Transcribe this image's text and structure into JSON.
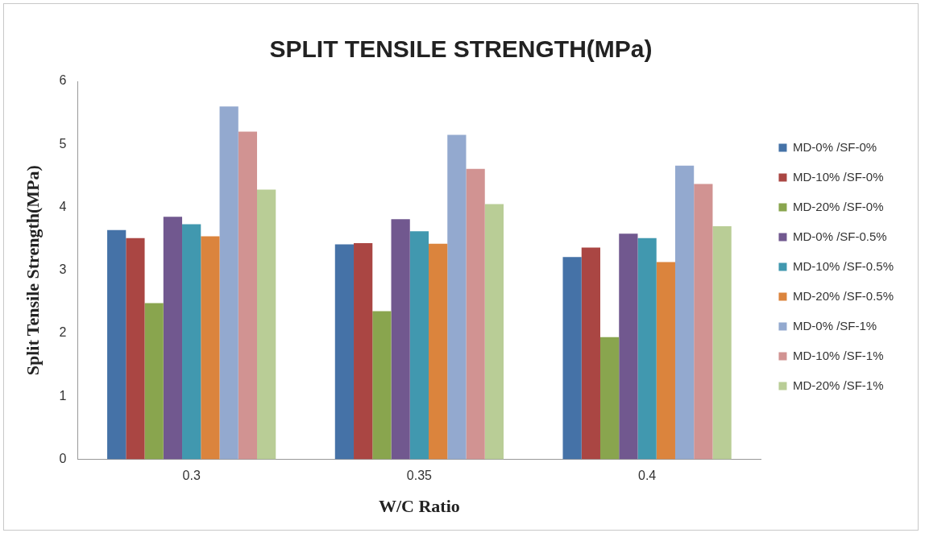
{
  "chart_data": {
    "type": "bar",
    "title": "SPLIT TENSILE STRENGTH(MPa)",
    "xlabel": "W/C Ratio",
    "ylabel": "Split Tensile Strength(MPa)",
    "categories": [
      "0.3",
      "0.35",
      "0.4"
    ],
    "series": [
      {
        "name": "MD-0% /SF-0%",
        "color": "#4572a7",
        "values": [
          3.64,
          3.41,
          3.21
        ]
      },
      {
        "name": "MD-10% /SF-0%",
        "color": "#aa4643",
        "values": [
          3.51,
          3.43,
          3.36
        ]
      },
      {
        "name": "MD-20% /SF-0%",
        "color": "#89a54e",
        "values": [
          2.48,
          2.35,
          1.94
        ]
      },
      {
        "name": "MD-0% /SF-0.5%",
        "color": "#71588f",
        "values": [
          3.85,
          3.81,
          3.58
        ]
      },
      {
        "name": "MD-10% /SF-0.5%",
        "color": "#4198af",
        "values": [
          3.73,
          3.62,
          3.51
        ]
      },
      {
        "name": "MD-20% /SF-0.5%",
        "color": "#db843d",
        "values": [
          3.54,
          3.42,
          3.13
        ]
      },
      {
        "name": "MD-0% /SF-1%",
        "color": "#93a9cf",
        "values": [
          5.6,
          5.15,
          4.66
        ]
      },
      {
        "name": "MD-10% /SF-1%",
        "color": "#d19392",
        "values": [
          5.2,
          4.61,
          4.37
        ]
      },
      {
        "name": "MD-20% /SF-1%",
        "color": "#b9cd96",
        "values": [
          4.28,
          4.05,
          3.7
        ]
      }
    ],
    "ylim": [
      0,
      6
    ],
    "yticks": [
      0,
      1,
      2,
      3,
      4,
      5,
      6
    ],
    "grid": false,
    "legend": "right"
  }
}
